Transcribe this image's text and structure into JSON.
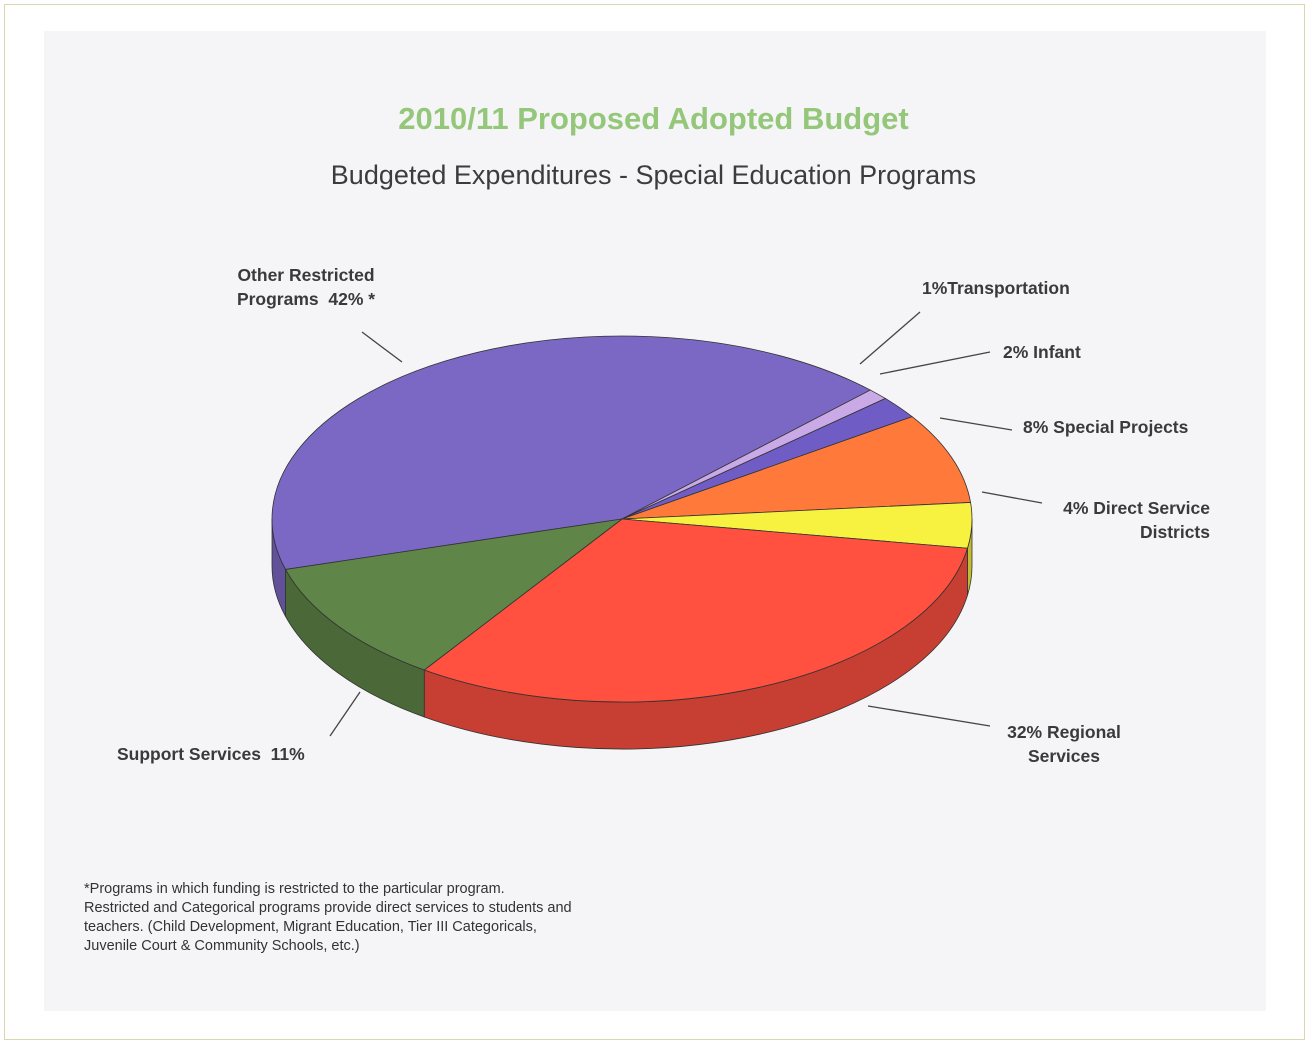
{
  "chart_data": {
    "type": "pie",
    "title": "2010/11 Proposed Adopted Budget",
    "subtitle": "Budgeted Expenditures - Special Education Programs",
    "slices": [
      {
        "name": "Other Restricted Programs",
        "value": 42,
        "label": "Other Restricted\nPrograms  42% *",
        "color": "#7b68c4"
      },
      {
        "name": "Transportation",
        "value": 1,
        "label": "1%Transportation",
        "color": "#c9a9e6"
      },
      {
        "name": "Infant",
        "value": 2,
        "label": "2% Infant",
        "color": "#6f5cc4"
      },
      {
        "name": "Special Projects",
        "value": 8,
        "label": "8% Special Projects",
        "color": "#ff7a3a"
      },
      {
        "name": "Direct Service Districts",
        "value": 4,
        "label": "4% Direct Service\nDistricts",
        "color": "#f7f140"
      },
      {
        "name": "Regional Services",
        "value": 32,
        "label": "32% Regional\nServices",
        "color": "#ff5040"
      },
      {
        "name": "Support Services",
        "value": 11,
        "label": "Support Services  11%",
        "color": "#5f8548"
      }
    ],
    "footnote": [
      "*Programs in which funding is restricted to the particular program.",
      " Restricted and Categorical programs provide direct services to students and",
      " teachers. (Child Development, Migrant Education, Tier III Categoricals,",
      " Juvenile Court & Community Schools, etc.)"
    ],
    "legend": "none"
  }
}
